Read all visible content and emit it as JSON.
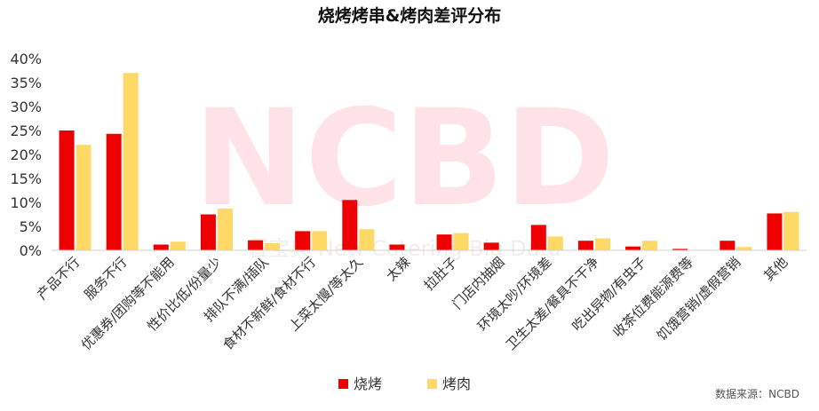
{
  "chart_data": {
    "type": "bar",
    "title": "烧烤烤串&烤肉差评分布",
    "categories": [
      "产品不行",
      "服务不行",
      "优惠券/团购等不能用",
      "性价比低/份量少",
      "排队不满/插队",
      "食材不新鲜/食材不行",
      "上菜太慢/等太久",
      "太辣",
      "拉肚子",
      "门店内抽烟",
      "环境太吵/环境差",
      "卫生太差/餐具不干净",
      "吃出异物/有虫子",
      "收茶位费能源费等",
      "饥饿营销/虚假营销",
      "其他"
    ],
    "series": [
      {
        "name": "烧烤",
        "color": "#ee0000",
        "values": [
          25.0,
          24.3,
          1.2,
          7.5,
          2.1,
          4.0,
          10.5,
          1.2,
          3.3,
          1.6,
          5.3,
          2.0,
          0.8,
          0.3,
          2.0,
          7.7
        ]
      },
      {
        "name": "烤肉",
        "color": "#ffd966",
        "values": [
          22.0,
          37.0,
          1.8,
          8.7,
          1.5,
          4.0,
          4.4,
          0.0,
          3.6,
          0.0,
          2.9,
          2.5,
          2.0,
          0.0,
          0.7,
          8.0
        ]
      }
    ],
    "xlabel": "",
    "ylabel": "",
    "ylim": [
      0,
      40
    ],
    "yticks": [
      "0%",
      "5%",
      "10%",
      "15%",
      "20%",
      "25%",
      "30%",
      "35%",
      "40%"
    ],
    "grid": false,
    "legend": "bottom-center"
  },
  "watermark": {
    "logo_text": "NCBD",
    "sub_text": "餐宝典 New Catering Big Data"
  },
  "source_note": "数据来源：NCBD"
}
